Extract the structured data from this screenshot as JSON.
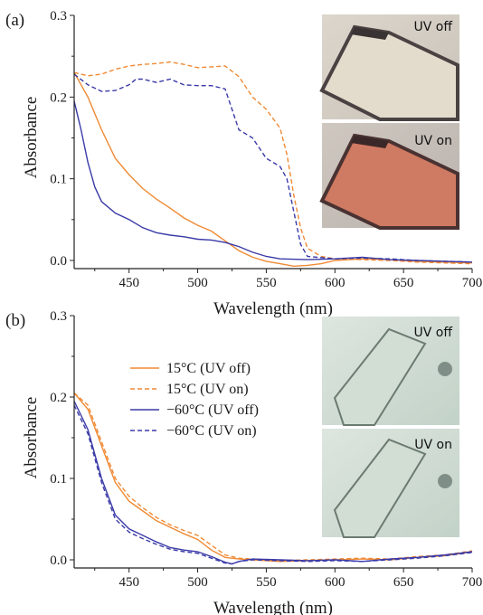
{
  "chart_data": [
    {
      "type": "line",
      "panel_label": "(a)",
      "xlabel": "Wavelength (nm)",
      "ylabel": "Absorbance",
      "xlim": [
        410,
        700
      ],
      "ylim": [
        -0.01,
        0.3
      ],
      "x_ticks": [
        "450",
        "500",
        "550",
        "600",
        "650",
        "700"
      ],
      "y_ticks": [
        "0.0",
        "0.1",
        "0.2",
        "0.3"
      ],
      "insets": [
        {
          "label": "UV off",
          "tone": "#e8e0d2"
        },
        {
          "label": "UV on",
          "tone": "#d77a62"
        }
      ],
      "series": [
        {
          "color": "#f08a34",
          "dash": false,
          "points": [
            [
              410,
              0.23
            ],
            [
              420,
              0.2
            ],
            [
              430,
              0.16
            ],
            [
              440,
              0.125
            ],
            [
              450,
              0.105
            ],
            [
              460,
              0.088
            ],
            [
              470,
              0.075
            ],
            [
              480,
              0.064
            ],
            [
              490,
              0.052
            ],
            [
              500,
              0.043
            ],
            [
              510,
              0.036
            ],
            [
              520,
              0.024
            ],
            [
              530,
              0.012
            ],
            [
              540,
              0.004
            ],
            [
              550,
              -0.001
            ],
            [
              560,
              -0.004
            ],
            [
              570,
              -0.007
            ],
            [
              580,
              -0.006
            ],
            [
              590,
              -0.004
            ],
            [
              600,
              0.0
            ],
            [
              620,
              0.002
            ],
            [
              640,
              0.001
            ],
            [
              660,
              -0.001
            ],
            [
              680,
              -0.002
            ],
            [
              700,
              -0.003
            ]
          ]
        },
        {
          "color": "#f08a34",
          "dash": true,
          "points": [
            [
              410,
              0.23
            ],
            [
              420,
              0.226
            ],
            [
              430,
              0.228
            ],
            [
              440,
              0.234
            ],
            [
              450,
              0.238
            ],
            [
              460,
              0.24
            ],
            [
              470,
              0.241
            ],
            [
              480,
              0.243
            ],
            [
              490,
              0.24
            ],
            [
              500,
              0.236
            ],
            [
              510,
              0.237
            ],
            [
              520,
              0.238
            ],
            [
              530,
              0.225
            ],
            [
              540,
              0.2
            ],
            [
              550,
              0.185
            ],
            [
              560,
              0.162
            ],
            [
              565,
              0.13
            ],
            [
              570,
              0.08
            ],
            [
              575,
              0.04
            ],
            [
              580,
              0.015
            ],
            [
              590,
              0.005
            ],
            [
              600,
              0.002
            ],
            [
              620,
              0.001
            ],
            [
              640,
              0.0
            ],
            [
              660,
              -0.002
            ],
            [
              680,
              -0.003
            ],
            [
              700,
              -0.004
            ]
          ]
        },
        {
          "color": "#3a3aa8",
          "dash": false,
          "points": [
            [
              410,
              0.195
            ],
            [
              415,
              0.16
            ],
            [
              420,
              0.12
            ],
            [
              425,
              0.09
            ],
            [
              430,
              0.072
            ],
            [
              440,
              0.058
            ],
            [
              450,
              0.05
            ],
            [
              460,
              0.04
            ],
            [
              470,
              0.034
            ],
            [
              480,
              0.031
            ],
            [
              490,
              0.029
            ],
            [
              500,
              0.026
            ],
            [
              510,
              0.025
            ],
            [
              520,
              0.022
            ],
            [
              530,
              0.017
            ],
            [
              540,
              0.01
            ],
            [
              550,
              0.005
            ],
            [
              560,
              0.002
            ],
            [
              580,
              0.001
            ],
            [
              600,
              0.002
            ],
            [
              620,
              0.004
            ],
            [
              640,
              0.001
            ],
            [
              660,
              0.0
            ],
            [
              680,
              -0.001
            ],
            [
              700,
              -0.002
            ]
          ]
        },
        {
          "color": "#3a3aa8",
          "dash": true,
          "points": [
            [
              410,
              0.228
            ],
            [
              420,
              0.215
            ],
            [
              430,
              0.207
            ],
            [
              440,
              0.208
            ],
            [
              450,
              0.215
            ],
            [
              455,
              0.222
            ],
            [
              460,
              0.222
            ],
            [
              470,
              0.218
            ],
            [
              480,
              0.222
            ],
            [
              490,
              0.215
            ],
            [
              500,
              0.214
            ],
            [
              510,
              0.214
            ],
            [
              520,
              0.21
            ],
            [
              530,
              0.16
            ],
            [
              540,
              0.15
            ],
            [
              550,
              0.125
            ],
            [
              560,
              0.115
            ],
            [
              565,
              0.1
            ],
            [
              570,
              0.06
            ],
            [
              575,
              0.02
            ],
            [
              580,
              0.005
            ],
            [
              600,
              0.002
            ],
            [
              620,
              0.003
            ],
            [
              640,
              0.002
            ],
            [
              660,
              0.0
            ],
            [
              680,
              -0.001
            ],
            [
              700,
              -0.002
            ]
          ]
        }
      ]
    },
    {
      "type": "line",
      "panel_label": "(b)",
      "xlabel": "Wavelength (nm)",
      "ylabel": "Absorbance",
      "xlim": [
        410,
        700
      ],
      "ylim": [
        -0.01,
        0.3
      ],
      "x_ticks": [
        "450",
        "500",
        "550",
        "600",
        "650",
        "700"
      ],
      "y_ticks": [
        "0.0",
        "0.1",
        "0.2",
        "0.3"
      ],
      "insets": [
        {
          "label": "UV off",
          "tone": "#c9d6cc"
        },
        {
          "label": "UV on",
          "tone": "#c9d6cc"
        }
      ],
      "series": [
        {
          "name": "15°C (UV off)",
          "color": "#f08a34",
          "dash": false,
          "points": [
            [
              410,
              0.205
            ],
            [
              420,
              0.185
            ],
            [
              430,
              0.14
            ],
            [
              440,
              0.095
            ],
            [
              450,
              0.072
            ],
            [
              460,
              0.06
            ],
            [
              470,
              0.048
            ],
            [
              480,
              0.04
            ],
            [
              490,
              0.032
            ],
            [
              500,
              0.025
            ],
            [
              510,
              0.012
            ],
            [
              520,
              0.003
            ],
            [
              530,
              0.001
            ],
            [
              540,
              0.0
            ],
            [
              560,
              -0.002
            ],
            [
              580,
              -0.001
            ],
            [
              600,
              0.0
            ],
            [
              620,
              0.001
            ],
            [
              640,
              0.0
            ],
            [
              660,
              0.003
            ],
            [
              680,
              0.005
            ],
            [
              700,
              0.01
            ]
          ]
        },
        {
          "name": "15°C (UV on)",
          "color": "#f08a34",
          "dash": true,
          "points": [
            [
              410,
              0.205
            ],
            [
              420,
              0.19
            ],
            [
              430,
              0.145
            ],
            [
              440,
              0.1
            ],
            [
              450,
              0.078
            ],
            [
              460,
              0.064
            ],
            [
              470,
              0.052
            ],
            [
              480,
              0.043
            ],
            [
              490,
              0.036
            ],
            [
              500,
              0.03
            ],
            [
              510,
              0.018
            ],
            [
              520,
              0.006
            ],
            [
              530,
              0.002
            ],
            [
              540,
              0.001
            ],
            [
              560,
              -0.001
            ],
            [
              580,
              0.0
            ],
            [
              600,
              0.001
            ],
            [
              620,
              0.002
            ],
            [
              640,
              0.001
            ],
            [
              660,
              0.004
            ],
            [
              680,
              0.006
            ],
            [
              700,
              0.011
            ]
          ]
        },
        {
          "name": "−60°C (UV off)",
          "color": "#3a3aa8",
          "dash": false,
          "points": [
            [
              410,
              0.195
            ],
            [
              420,
              0.16
            ],
            [
              430,
              0.1
            ],
            [
              440,
              0.055
            ],
            [
              450,
              0.038
            ],
            [
              460,
              0.03
            ],
            [
              470,
              0.022
            ],
            [
              480,
              0.015
            ],
            [
              490,
              0.012
            ],
            [
              500,
              0.01
            ],
            [
              510,
              0.004
            ],
            [
              520,
              -0.003
            ],
            [
              525,
              -0.005
            ],
            [
              530,
              -0.002
            ],
            [
              540,
              0.001
            ],
            [
              560,
              0.0
            ],
            [
              580,
              -0.001
            ],
            [
              600,
              0.0
            ],
            [
              620,
              -0.002
            ],
            [
              640,
              0.001
            ],
            [
              660,
              0.003
            ],
            [
              680,
              0.006
            ],
            [
              700,
              0.01
            ]
          ]
        },
        {
          "name": "−60°C (UV on)",
          "color": "#3a3aa8",
          "dash": true,
          "points": [
            [
              410,
              0.19
            ],
            [
              420,
              0.155
            ],
            [
              430,
              0.095
            ],
            [
              440,
              0.05
            ],
            [
              450,
              0.034
            ],
            [
              460,
              0.026
            ],
            [
              470,
              0.019
            ],
            [
              480,
              0.013
            ],
            [
              490,
              0.01
            ],
            [
              500,
              0.008
            ],
            [
              510,
              0.002
            ],
            [
              520,
              -0.004
            ],
            [
              525,
              -0.005
            ],
            [
              530,
              -0.002
            ],
            [
              540,
              0.0
            ],
            [
              560,
              -0.001
            ],
            [
              580,
              -0.002
            ],
            [
              600,
              -0.001
            ],
            [
              620,
              -0.002
            ],
            [
              640,
              0.0
            ],
            [
              660,
              0.002
            ],
            [
              680,
              0.005
            ],
            [
              700,
              0.009
            ]
          ]
        }
      ]
    }
  ]
}
